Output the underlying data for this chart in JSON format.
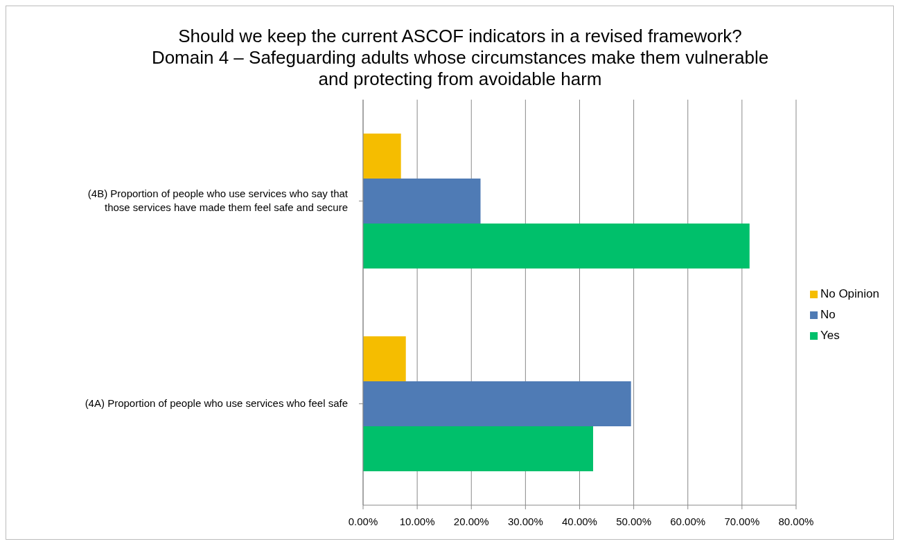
{
  "chart_data": {
    "type": "bar",
    "orientation": "horizontal",
    "title": "Should we keep the current ASCOF indicators in a revised framework?\nDomain 4 – Safeguarding adults whose circumstances make them vulnerable\nand protecting from avoidable harm",
    "categories": [
      "(4B) Proportion of people who use services who say that those services have made them feel safe and secure",
      "(4A) Proportion of people who use services who feel safe"
    ],
    "series": [
      {
        "name": "No Opinion",
        "color": "#f5bd00",
        "values": [
          7.0,
          7.9
        ]
      },
      {
        "name": "No",
        "color": "#4f7bb5",
        "values": [
          21.7,
          49.5
        ]
      },
      {
        "name": "Yes",
        "color": "#00c06b",
        "values": [
          71.4,
          42.5
        ]
      }
    ],
    "xlim": [
      0,
      80
    ],
    "xticks": [
      {
        "value": 0,
        "label": "0.00%"
      },
      {
        "value": 10,
        "label": "10.00%"
      },
      {
        "value": 20,
        "label": "20.00%"
      },
      {
        "value": 30,
        "label": "30.00%"
      },
      {
        "value": 40,
        "label": "40.00%"
      },
      {
        "value": 50,
        "label": "50.00%"
      },
      {
        "value": 60,
        "label": "60.00%"
      },
      {
        "value": 70,
        "label": "70.00%"
      },
      {
        "value": 80,
        "label": "80.00%"
      }
    ],
    "grid": "x",
    "legend": "right"
  }
}
